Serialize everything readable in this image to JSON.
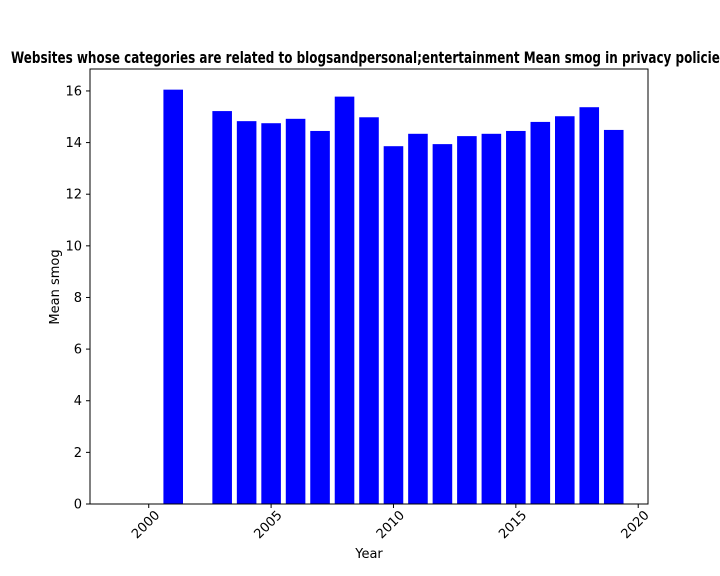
{
  "chart_data": {
    "type": "bar",
    "title": "Websites whose categories are related to blogsandpersonal;entertainment Mean smog in privacy policies",
    "xlabel": "Year",
    "ylabel": "Mean smog",
    "x": [
      2001,
      2003,
      2004,
      2005,
      2006,
      2007,
      2008,
      2009,
      2010,
      2011,
      2012,
      2013,
      2014,
      2015,
      2016,
      2017,
      2018,
      2019
    ],
    "values": [
      16.05,
      15.22,
      14.83,
      14.75,
      14.92,
      14.45,
      15.78,
      14.98,
      13.86,
      14.34,
      13.94,
      14.25,
      14.34,
      14.45,
      14.8,
      15.02,
      15.37,
      14.49
    ],
    "xlim": [
      1997.6,
      2020.4
    ],
    "ylim": [
      0,
      16.85
    ],
    "xticks": [
      2000,
      2005,
      2010,
      2015,
      2020
    ],
    "yticks": [
      0,
      2,
      4,
      6,
      8,
      10,
      12,
      14,
      16
    ],
    "bar_color": "#0000ff",
    "grid": false,
    "legend": "none"
  }
}
